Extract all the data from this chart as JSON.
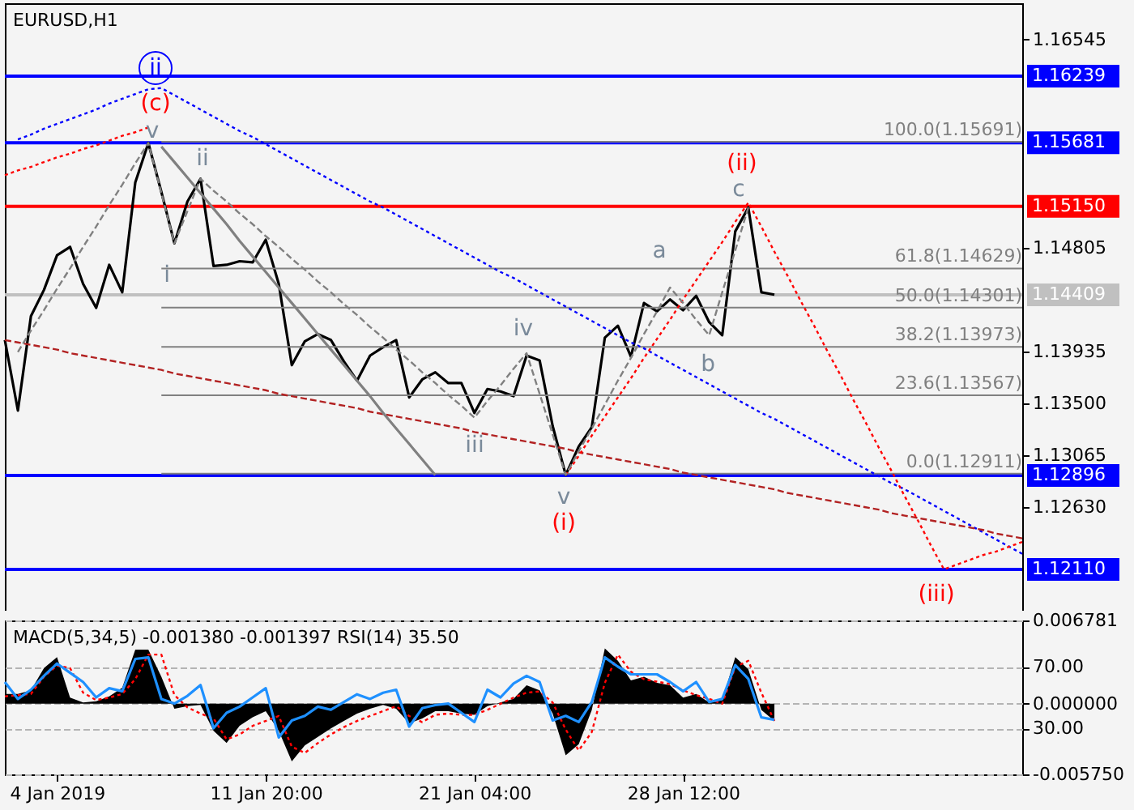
{
  "chart_data": [
    {
      "type": "line",
      "title": "EURUSD,H1",
      "categories": [
        null,
        null,
        null,
        null,
        null,
        null,
        null,
        null,
        null,
        null,
        null,
        null,
        null,
        null,
        null,
        null,
        null,
        null,
        null,
        null,
        null,
        null,
        null,
        null,
        null,
        null,
        null,
        null,
        null,
        null,
        null,
        null,
        null,
        null,
        null,
        null,
        null,
        null,
        null,
        null,
        null,
        null,
        null,
        null,
        null,
        null,
        null,
        null,
        null,
        null,
        null,
        null,
        null,
        null,
        null,
        null,
        null,
        null,
        null,
        null,
        null,
        null,
        null,
        null,
        null,
        null,
        null,
        null,
        null,
        null,
        null,
        null,
        null,
        null,
        null,
        null,
        null,
        null,
        null
      ],
      "ylim": [
        1.1175,
        1.1685
      ],
      "yticks": [
        1.16545,
        1.14805,
        1.13935,
        {
          "value": 1.135,
          "label": "1.13500"
        },
        1.13065,
        {
          "value": 1.1263,
          "label": "1.12630"
        }
      ],
      "tick_labels": "y",
      "ref_lines": [
        {
          "axis": "y",
          "value": 1.16239,
          "label": "1.16239",
          "color": "#0000ff"
        },
        {
          "axis": "y",
          "value": 1.15681,
          "label": "1.15681",
          "color": "#0000ff"
        },
        {
          "axis": "y",
          "value": 1.1515,
          "label": "1.15150",
          "color": "#ff0000"
        },
        {
          "axis": "y",
          "value": 1.14409,
          "label": "1.14409",
          "color": "#c0c0c0"
        },
        {
          "axis": "y",
          "value": 1.12896,
          "label": "1.12896",
          "color": "#0000ff"
        },
        {
          "axis": "y",
          "value": 1.1211,
          "label": "1.12110",
          "color": "#0000ff"
        }
      ],
      "series": [
        {
          "color": "#000000",
          "values": [
            1.1403,
            1.1344,
            1.1423,
            1.1445,
            1.1474,
            1.1481,
            1.145,
            1.143,
            1.1466,
            1.1443,
            1.1535,
            1.1568,
            1.1527,
            1.1484,
            1.1519,
            1.1538,
            1.1465,
            1.1466,
            1.1469,
            1.1468,
            1.1487,
            1.145,
            1.1382,
            1.1402,
            1.1408,
            1.1403,
            1.1385,
            1.1369,
            1.139,
            1.1397,
            1.1403,
            1.1355,
            1.137,
            1.1376,
            1.1367,
            1.1367,
            1.1342,
            1.1362,
            1.136,
            1.1356,
            1.139,
            1.1386,
            1.1331,
            1.129,
            1.1314,
            1.133,
            1.1405,
            1.1415,
            1.1389,
            1.1434,
            1.1427,
            1.1437,
            1.1428,
            1.144,
            1.1418,
            1.1407,
            1.1494,
            1.1514,
            1.1443,
            1.1441,
            null,
            null,
            null,
            null,
            null,
            null,
            null,
            null,
            null,
            null,
            null,
            null,
            null,
            null,
            null,
            null,
            null,
            null,
            null
          ]
        },
        {
          "name": "100.0(1.15691)",
          "color": "#808080",
          "values": [
            null,
            null,
            null,
            null,
            null,
            null,
            null,
            null,
            null,
            null,
            null,
            null,
            1.15691,
            1.15691,
            1.15691,
            1.15691,
            1.15691,
            1.15691,
            1.15691,
            1.15691,
            1.15691,
            1.15691,
            1.15691,
            1.15691,
            1.15691,
            1.15691,
            1.15691,
            1.15691,
            1.15691,
            1.15691,
            1.15691,
            1.15691,
            1.15691,
            1.15691,
            1.15691,
            1.15691,
            1.15691,
            1.15691,
            1.15691,
            1.15691,
            1.15691,
            1.15691,
            1.15691,
            1.15691,
            1.15691,
            1.15691,
            1.15691,
            1.15691,
            1.15691,
            1.15691,
            1.15691,
            1.15691,
            1.15691,
            1.15691,
            1.15691,
            1.15691,
            1.15691,
            1.15691,
            1.15691,
            1.15691,
            1.15691,
            1.15691,
            1.15691,
            1.15691,
            1.15691,
            1.15691,
            1.15691,
            1.15691,
            1.15691,
            1.15691,
            1.15691,
            1.15691,
            1.15691,
            1.15691,
            1.15691,
            1.15691,
            1.15691,
            1.15691,
            1.15691
          ]
        },
        {
          "name": "61.8(1.14629)",
          "color": "#808080",
          "values": [
            null,
            null,
            null,
            null,
            null,
            null,
            null,
            null,
            null,
            null,
            null,
            null,
            1.14629,
            1.14629,
            1.14629,
            1.14629,
            1.14629,
            1.14629,
            1.14629,
            1.14629,
            1.14629,
            1.14629,
            1.14629,
            1.14629,
            1.14629,
            1.14629,
            1.14629,
            1.14629,
            1.14629,
            1.14629,
            1.14629,
            1.14629,
            1.14629,
            1.14629,
            1.14629,
            1.14629,
            1.14629,
            1.14629,
            1.14629,
            1.14629,
            1.14629,
            1.14629,
            1.14629,
            1.14629,
            1.14629,
            1.14629,
            1.14629,
            1.14629,
            1.14629,
            1.14629,
            1.14629,
            1.14629,
            1.14629,
            1.14629,
            1.14629,
            1.14629,
            1.14629,
            1.14629,
            1.14629,
            1.14629,
            1.14629,
            1.14629,
            1.14629,
            1.14629,
            1.14629,
            1.14629,
            1.14629,
            1.14629,
            1.14629,
            1.14629,
            1.14629,
            1.14629,
            1.14629,
            1.14629,
            1.14629,
            1.14629,
            1.14629,
            1.14629,
            1.14629
          ]
        },
        {
          "name": "50.0(1.14301)",
          "color": "#808080",
          "values": [
            null,
            null,
            null,
            null,
            null,
            null,
            null,
            null,
            null,
            null,
            null,
            null,
            1.14301,
            1.14301,
            1.14301,
            1.14301,
            1.14301,
            1.14301,
            1.14301,
            1.14301,
            1.14301,
            1.14301,
            1.14301,
            1.14301,
            1.14301,
            1.14301,
            1.14301,
            1.14301,
            1.14301,
            1.14301,
            1.14301,
            1.14301,
            1.14301,
            1.14301,
            1.14301,
            1.14301,
            1.14301,
            1.14301,
            1.14301,
            1.14301,
            1.14301,
            1.14301,
            1.14301,
            1.14301,
            1.14301,
            1.14301,
            1.14301,
            1.14301,
            1.14301,
            1.14301,
            1.14301,
            1.14301,
            1.14301,
            1.14301,
            1.14301,
            1.14301,
            1.14301,
            1.14301,
            1.14301,
            1.14301,
            1.14301,
            1.14301,
            1.14301,
            1.14301,
            1.14301,
            1.14301,
            1.14301,
            1.14301,
            1.14301,
            1.14301,
            1.14301,
            1.14301,
            1.14301,
            1.14301,
            1.14301,
            1.14301,
            1.14301,
            1.14301,
            1.14301
          ]
        },
        {
          "name": "38.2(1.13973)",
          "color": "#808080",
          "values": [
            null,
            null,
            null,
            null,
            null,
            null,
            null,
            null,
            null,
            null,
            null,
            null,
            1.13973,
            1.13973,
            1.13973,
            1.13973,
            1.13973,
            1.13973,
            1.13973,
            1.13973,
            1.13973,
            1.13973,
            1.13973,
            1.13973,
            1.13973,
            1.13973,
            1.13973,
            1.13973,
            1.13973,
            1.13973,
            1.13973,
            1.13973,
            1.13973,
            1.13973,
            1.13973,
            1.13973,
            1.13973,
            1.13973,
            1.13973,
            1.13973,
            1.13973,
            1.13973,
            1.13973,
            1.13973,
            1.13973,
            1.13973,
            1.13973,
            1.13973,
            1.13973,
            1.13973,
            1.13973,
            1.13973,
            1.13973,
            1.13973,
            1.13973,
            1.13973,
            1.13973,
            1.13973,
            1.13973,
            1.13973,
            1.13973,
            1.13973,
            1.13973,
            1.13973,
            1.13973,
            1.13973,
            1.13973,
            1.13973,
            1.13973,
            1.13973,
            1.13973,
            1.13973,
            1.13973,
            1.13973,
            1.13973,
            1.13973,
            1.13973,
            1.13973,
            1.13973
          ]
        },
        {
          "name": "23.6(1.13567)",
          "color": "#808080",
          "values": [
            null,
            null,
            null,
            null,
            null,
            null,
            null,
            null,
            null,
            null,
            null,
            null,
            1.13567,
            1.13567,
            1.13567,
            1.13567,
            1.13567,
            1.13567,
            1.13567,
            1.13567,
            1.13567,
            1.13567,
            1.13567,
            1.13567,
            1.13567,
            1.13567,
            1.13567,
            1.13567,
            1.13567,
            1.13567,
            1.13567,
            1.13567,
            1.13567,
            1.13567,
            1.13567,
            1.13567,
            1.13567,
            1.13567,
            1.13567,
            1.13567,
            1.13567,
            1.13567,
            1.13567,
            1.13567,
            1.13567,
            1.13567,
            1.13567,
            1.13567,
            1.13567,
            1.13567,
            1.13567,
            1.13567,
            1.13567,
            1.13567,
            1.13567,
            1.13567,
            1.13567,
            1.13567,
            1.13567,
            1.13567,
            1.13567,
            1.13567,
            1.13567,
            1.13567,
            1.13567,
            1.13567,
            1.13567,
            1.13567,
            1.13567,
            1.13567,
            1.13567,
            1.13567,
            1.13567,
            1.13567,
            1.13567,
            1.13567,
            1.13567,
            1.13567,
            1.13567
          ]
        },
        {
          "name": "0.0(1.12911)",
          "color": "#808080",
          "values": [
            null,
            null,
            null,
            null,
            null,
            null,
            null,
            null,
            null,
            null,
            null,
            null,
            1.12911,
            1.12911,
            1.12911,
            1.12911,
            1.12911,
            1.12911,
            1.12911,
            1.12911,
            1.12911,
            1.12911,
            1.12911,
            1.12911,
            1.12911,
            1.12911,
            1.12911,
            1.12911,
            1.12911,
            1.12911,
            1.12911,
            1.12911,
            1.12911,
            1.12911,
            1.12911,
            1.12911,
            1.12911,
            1.12911,
            1.12911,
            1.12911,
            1.12911,
            1.12911,
            1.12911,
            1.12911,
            1.12911,
            1.12911,
            1.12911,
            1.12911,
            1.12911,
            1.12911,
            1.12911,
            1.12911,
            1.12911,
            1.12911,
            1.12911,
            1.12911,
            1.12911,
            1.12911,
            1.12911,
            1.12911,
            1.12911,
            1.12911,
            1.12911,
            1.12911,
            1.12911,
            1.12911,
            1.12911,
            1.12911,
            1.12911,
            1.12911,
            1.12911,
            1.12911,
            1.12911,
            1.12911,
            1.12911,
            1.12911,
            1.12911,
            1.12911,
            1.12911
          ]
        },
        {
          "color": "#0000ff",
          "line_style": "dotted",
          "values": [
            null,
            1.1571,
            1.1575,
            1.158,
            1.1584,
            1.1588,
            1.1592,
            1.1596,
            1.1601,
            1.1605,
            1.1609,
            1.1613,
            1.1614,
            1.1608,
            1.1602,
            1.1596,
            1.159,
            1.1584,
            1.1578,
            1.1573,
            1.1567,
            1.1561,
            1.1555,
            1.1549,
            1.1543,
            1.1537,
            1.1531,
            1.1525,
            1.1519,
            1.1514,
            1.1508,
            1.1502,
            1.1496,
            1.149,
            1.1484,
            1.1478,
            1.1472,
            1.1466,
            1.146,
            1.1455,
            1.1449,
            1.1443,
            1.1437,
            1.1431,
            1.1425,
            1.1419,
            1.1413,
            1.1407,
            1.1401,
            1.1396,
            1.139,
            1.1384,
            1.1378,
            1.1372,
            1.1366,
            1.136,
            1.1354,
            1.1348,
            1.1342,
            1.1337,
            1.1331,
            1.1325,
            1.1319,
            1.1313,
            1.1307,
            1.1301,
            1.1295,
            1.1289,
            1.1283,
            1.1278,
            1.1272,
            1.1266,
            1.126,
            1.1254,
            1.1248,
            1.1242,
            1.1236,
            1.123,
            1.1224
          ]
        },
        {
          "color": "#ff0000",
          "line_style": "dotted",
          "values": [
            1.1541,
            1.1545,
            1.1548,
            1.1552,
            1.1556,
            1.1559,
            1.1563,
            1.1566,
            1.157,
            1.1574,
            1.1577,
            1.1581,
            null,
            null,
            null,
            null,
            null,
            null,
            null,
            null,
            null,
            null,
            null,
            null,
            null,
            null,
            null,
            null,
            null,
            null,
            null,
            null,
            null,
            null,
            null,
            null,
            null,
            null,
            null,
            null,
            null,
            null,
            null,
            null,
            null,
            null,
            null,
            null,
            null,
            null,
            null,
            null,
            null,
            null,
            null,
            null,
            null,
            null,
            null,
            null,
            null,
            null,
            null,
            null,
            null,
            null,
            null,
            null,
            null,
            null,
            null,
            null,
            null,
            null,
            null,
            null,
            null,
            null,
            null
          ]
        },
        {
          "color": "#b22222",
          "line_style": "dashed",
          "values": [
            1.1403,
            1.1401,
            1.1399,
            1.1397,
            1.1395,
            1.1392,
            1.139,
            1.1388,
            1.1386,
            1.1384,
            1.1382,
            1.138,
            1.1378,
            1.1375,
            1.1373,
            1.1371,
            1.1369,
            1.1367,
            1.1365,
            1.1363,
            1.1361,
            1.1358,
            1.1356,
            1.1354,
            1.1352,
            1.135,
            1.1348,
            1.1346,
            1.1343,
            1.1341,
            1.1339,
            1.1337,
            1.1335,
            1.1333,
            1.1331,
            1.1329,
            1.1326,
            1.1324,
            1.1322,
            1.132,
            1.1318,
            1.1316,
            1.1314,
            1.1312,
            1.1309,
            1.1307,
            1.1305,
            1.1303,
            1.1301,
            1.1299,
            1.1297,
            1.1295,
            1.1292,
            1.129,
            1.1288,
            1.1286,
            1.1284,
            1.1282,
            1.128,
            1.1278,
            1.1275,
            1.1273,
            1.1271,
            1.1269,
            1.1267,
            1.1265,
            1.1263,
            1.1261,
            1.1258,
            1.1256,
            1.1254,
            1.1252,
            1.125,
            1.1248,
            1.1246,
            1.1244,
            1.1241,
            1.1239,
            1.1237
          ]
        },
        {
          "color": "#ff0000",
          "line_style": "dotted",
          "values": [
            null,
            null,
            null,
            null,
            null,
            null,
            null,
            null,
            null,
            null,
            null,
            null,
            null,
            null,
            null,
            null,
            null,
            null,
            null,
            null,
            null,
            null,
            null,
            null,
            null,
            null,
            null,
            null,
            null,
            null,
            null,
            null,
            null,
            null,
            null,
            null,
            null,
            null,
            null,
            null,
            null,
            null,
            null,
            1.129,
            1.1306,
            1.1323,
            1.1339,
            1.1355,
            1.1371,
            1.1388,
            1.1404,
            1.142,
            1.1437,
            1.1453,
            1.1469,
            1.1485,
            1.1502,
            1.1518,
            1.1498,
            1.1477,
            1.1457,
            1.1436,
            1.1416,
            1.1395,
            1.1375,
            1.1354,
            1.1334,
            1.1313,
            1.1293,
            1.1272,
            1.1252,
            1.1231,
            1.1211,
            1.1215,
            1.1219,
            1.1223,
            1.1226,
            1.123,
            1.1234
          ]
        },
        {
          "color": "#808080",
          "line_style": "dashed",
          "values": [
            null,
            1.1393,
            1.1411,
            1.1428,
            1.1446,
            1.1463,
            1.1481,
            1.1498,
            1.1516,
            1.1533,
            1.1551,
            1.1568,
            1.1526,
            1.1484,
            1.1511,
            1.1538,
            1.1528,
            1.1519,
            1.1509,
            1.15,
            1.149,
            1.1481,
            1.1471,
            1.1462,
            1.1452,
            1.1443,
            1.1433,
            1.1424,
            1.1414,
            1.1405,
            1.1395,
            1.1386,
            1.1376,
            1.1367,
            1.1357,
            1.1348,
            1.1338,
            1.1352,
            1.1365,
            1.1379,
            1.1392,
            1.1358,
            1.1324,
            1.129,
            1.131,
            1.1329,
            1.1349,
            1.1369,
            1.1388,
            1.1408,
            1.1427,
            1.1447,
            1.1434,
            1.142,
            1.1407,
            1.1443,
            1.1478,
            1.1514,
            null,
            null,
            null,
            null,
            null,
            null,
            null,
            null,
            null,
            null,
            null,
            null,
            null,
            null,
            null,
            null,
            null,
            null,
            null,
            null,
            null
          ]
        },
        {
          "color": "#808080",
          "values": [
            null,
            null,
            null,
            null,
            null,
            null,
            null,
            null,
            null,
            null,
            null,
            null,
            1.1565,
            1.1552,
            1.1539,
            1.1526,
            1.1513,
            1.15,
            1.1486,
            1.1473,
            1.146,
            1.1447,
            1.1434,
            1.1421,
            1.1408,
            1.1395,
            1.1382,
            1.1369,
            1.1356,
            1.1342,
            1.1329,
            1.1316,
            1.1303,
            1.129,
            null,
            null,
            null,
            null,
            null,
            null,
            null,
            null,
            null,
            null,
            null,
            null,
            null,
            null,
            null,
            null,
            null,
            null,
            null,
            null,
            null,
            null,
            null,
            null,
            null,
            null,
            null,
            null,
            null,
            null,
            null,
            null,
            null,
            null,
            null,
            null,
            null,
            null,
            null,
            null,
            null,
            null,
            null,
            null,
            null
          ]
        }
      ],
      "annotations": [
        "ii",
        "(c)",
        "v",
        "ii",
        "i",
        "iii",
        "iv",
        "v",
        "(i)",
        "a",
        "b",
        "c",
        "(ii)",
        "(iii)"
      ]
    },
    {
      "type": "line",
      "title": "MACD(5,34,5) -0.001380 -0.001397 RSI(14) 35.50",
      "categories": [
        null,
        null,
        null,
        null,
        "4 Jan 2019",
        null,
        null,
        null,
        null,
        null,
        null,
        null,
        null,
        null,
        null,
        null,
        null,
        null,
        null,
        null,
        "11 Jan 20:00",
        null,
        null,
        null,
        null,
        null,
        null,
        null,
        null,
        null,
        null,
        null,
        null,
        null,
        null,
        null,
        "21 Jan 04:00",
        null,
        null,
        null,
        null,
        null,
        null,
        null,
        null,
        null,
        null,
        null,
        null,
        null,
        null,
        null,
        "28 Jan 12:00",
        null,
        null,
        null,
        null,
        null,
        null,
        null,
        null,
        null,
        null,
        null,
        null,
        null,
        null,
        null,
        null,
        null,
        null,
        null,
        null,
        null,
        null,
        null,
        null,
        null,
        null
      ],
      "ylim": [
        -0.00575,
        0.006781
      ],
      "yticks": [
        0.006781,
        {
          "value": 0,
          "label": "0.000000"
        },
        {
          "value": -0.00575,
          "label": "-0.005750"
        }
      ],
      "y2lim": [
        0,
        100
      ],
      "y2ticks": [
        {
          "value": 70,
          "label": "70.00"
        },
        {
          "value": 30,
          "label": "30.00"
        }
      ],
      "grid": "y",
      "series": [
        {
          "type": "area",
          "color": "#000000",
          "values": [
            0.0008,
            0.0008,
            0.0011,
            0.0029,
            0.0038,
            0.0005,
            0.0001,
            0.0002,
            0.0006,
            0.0013,
            0.0044,
            0.0044,
            0.0022,
            -0.0004,
            -0.0002,
            -0.0001,
            -0.0022,
            -0.0032,
            -0.0018,
            -0.0011,
            -0.0006,
            -0.0022,
            -0.0047,
            -0.0034,
            -0.0027,
            -0.002,
            -0.0014,
            -0.0008,
            -0.0004,
            -0.0001,
            -0.0004,
            -0.0016,
            -0.0012,
            -0.0006,
            -0.0006,
            -0.0008,
            -0.0009,
            -0.0002,
            0.0001,
            0.0004,
            0.0015,
            0.0011,
            -0.0008,
            -0.0042,
            -0.0033,
            -0.0005,
            0.0045,
            0.0035,
            0.0019,
            0.0022,
            0.0017,
            0.0015,
            0.0005,
            0.0008,
            0.0001,
            0.0003,
            0.0038,
            0.0028,
            -0.0005,
            -0.0014,
            null,
            null,
            null,
            null,
            null,
            null,
            null,
            null,
            null,
            null,
            null,
            null,
            null,
            null,
            null,
            null,
            null,
            null,
            null
          ]
        },
        {
          "color": "#ff0000",
          "line_style": "dotted",
          "values": [
            0.0006,
            0.0007,
            0.0008,
            0.0022,
            0.0031,
            0.0029,
            0.0009,
            0.0003,
            0.0005,
            0.0008,
            0.002,
            0.004,
            0.004,
            0.0007,
            -0.0003,
            -0.0008,
            -0.0012,
            -0.0029,
            -0.0025,
            -0.0018,
            -0.0014,
            -0.001,
            -0.0035,
            -0.004,
            -0.0032,
            -0.0025,
            -0.0019,
            -0.0014,
            -0.001,
            -0.0006,
            -0.0002,
            -0.001,
            -0.0015,
            -0.0009,
            -0.0008,
            -0.0009,
            -0.0009,
            -0.0005,
            0,
            0.0005,
            0.0009,
            0.001,
            0.0001,
            -0.0021,
            -0.0038,
            -0.0023,
            0.0017,
            0.004,
            0.0026,
            0.002,
            0.0018,
            0.0016,
            0.0011,
            0.0007,
            0.0004,
            0,
            0.003,
            0.0035,
            0.0009,
            -0.0014,
            null,
            null,
            null,
            null,
            null,
            null,
            null,
            null,
            null,
            null,
            null,
            null,
            null,
            null,
            null,
            null,
            null,
            null,
            null
          ]
        },
        {
          "color": "#1e90ff",
          "axis": "y2",
          "values": [
            60,
            49,
            55,
            64,
            72,
            66,
            60,
            50,
            56,
            54,
            75,
            76,
            49,
            46,
            51,
            58,
            30,
            40,
            44,
            50,
            56,
            24,
            35,
            38,
            44,
            42,
            47,
            52,
            49,
            53,
            55,
            31,
            43,
            45,
            46,
            40,
            34,
            55,
            50,
            59,
            64,
            60,
            35,
            38,
            34,
            47,
            76,
            70,
            65,
            65,
            65,
            60,
            54,
            60,
            47,
            49,
            71,
            62,
            37,
            35.5,
            null,
            null,
            null,
            null,
            null,
            null,
            null,
            null,
            null,
            null,
            null,
            null,
            null,
            null,
            null,
            null,
            null,
            null,
            null
          ]
        }
      ]
    }
  ]
}
